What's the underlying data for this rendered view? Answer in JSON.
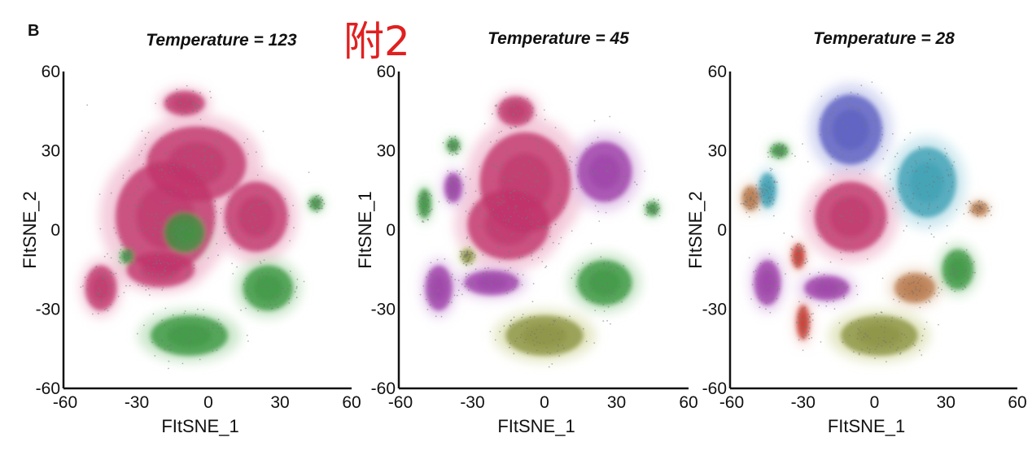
{
  "figure": {
    "panel_letter": "B",
    "annotation": {
      "text": "附2",
      "color": "#e02020"
    }
  },
  "chart_data": [
    {
      "type": "scatter",
      "title": "Temperature = 123",
      "xlabel": "FItSNE_1",
      "ylabel": "FItSNE_2",
      "xlim": [
        -60,
        60
      ],
      "ylim": [
        -60,
        60
      ],
      "xticks": [
        -60,
        -30,
        0,
        30,
        60
      ],
      "yticks": [
        60,
        30,
        0,
        -30,
        -60
      ],
      "grid": false,
      "legend": "none",
      "clusters": [
        {
          "color": "#c0336a",
          "halo": "#f2c4d6",
          "center": [
            -5,
            25
          ],
          "spread": [
            22,
            15
          ]
        },
        {
          "color": "#c0336a",
          "halo": "#f2c4d6",
          "center": [
            -18,
            5
          ],
          "spread": [
            22,
            22
          ]
        },
        {
          "color": "#c0336a",
          "halo": "#f2c4d6",
          "center": [
            -45,
            -22
          ],
          "spread": [
            7,
            9
          ]
        },
        {
          "color": "#c0336a",
          "halo": "#f2c4d6",
          "center": [
            -20,
            -15
          ],
          "spread": [
            15,
            7
          ]
        },
        {
          "color": "#c0336a",
          "halo": "#f2c4d6",
          "center": [
            20,
            5
          ],
          "spread": [
            14,
            14
          ]
        },
        {
          "color": "#c0336a",
          "halo": "#f2c4d6",
          "center": [
            -10,
            48
          ],
          "spread": [
            9,
            5
          ]
        },
        {
          "color": "#3a963f",
          "halo": "#bfe2bf",
          "center": [
            -10,
            -1
          ],
          "spread": [
            9,
            8
          ]
        },
        {
          "color": "#3a963f",
          "halo": "#bfe2bf",
          "center": [
            -8,
            -40
          ],
          "spread": [
            17,
            8
          ]
        },
        {
          "color": "#3a963f",
          "halo": "#bfe2bf",
          "center": [
            25,
            -22
          ],
          "spread": [
            11,
            9
          ]
        },
        {
          "color": "#3a963f",
          "halo": "#bfe2bf",
          "center": [
            45,
            10
          ],
          "spread": [
            3,
            3
          ]
        },
        {
          "color": "#3a963f",
          "halo": "#bfe2bf",
          "center": [
            -34,
            -10
          ],
          "spread": [
            3,
            3
          ]
        }
      ]
    },
    {
      "type": "scatter",
      "title": "Temperature = 45",
      "xlabel": "FItSNE_1",
      "ylabel": "FItSNE_1",
      "xlim": [
        -60,
        60
      ],
      "ylim": [
        -60,
        60
      ],
      "xticks": [
        -60,
        -30,
        0,
        30,
        60
      ],
      "yticks": [
        60,
        30,
        0,
        -30,
        -60
      ],
      "grid": false,
      "legend": "none",
      "clusters": [
        {
          "color": "#c0336a",
          "halo": "#f2c4d6",
          "center": [
            -8,
            18
          ],
          "spread": [
            20,
            20
          ]
        },
        {
          "color": "#c0336a",
          "halo": "#f2c4d6",
          "center": [
            -15,
            2
          ],
          "spread": [
            18,
            14
          ]
        },
        {
          "color": "#c0336a",
          "halo": "#f2c4d6",
          "center": [
            -12,
            45
          ],
          "spread": [
            8,
            6
          ]
        },
        {
          "color": "#9c3ca8",
          "halo": "#e3c6ea",
          "center": [
            25,
            22
          ],
          "spread": [
            12,
            12
          ]
        },
        {
          "color": "#9c3ca8",
          "halo": "#e3c6ea",
          "center": [
            -44,
            -22
          ],
          "spread": [
            6,
            9
          ]
        },
        {
          "color": "#9c3ca8",
          "halo": "#e3c6ea",
          "center": [
            -22,
            -20
          ],
          "spread": [
            12,
            5
          ]
        },
        {
          "color": "#9c3ca8",
          "halo": "#e3c6ea",
          "center": [
            -38,
            16
          ],
          "spread": [
            4,
            6
          ]
        },
        {
          "color": "#3a963f",
          "halo": "#bfe2bf",
          "center": [
            -50,
            10
          ],
          "spread": [
            3,
            6
          ]
        },
        {
          "color": "#3a963f",
          "halo": "#bfe2bf",
          "center": [
            -38,
            32
          ],
          "spread": [
            3,
            3
          ]
        },
        {
          "color": "#3a963f",
          "halo": "#bfe2bf",
          "center": [
            25,
            -20
          ],
          "spread": [
            12,
            9
          ]
        },
        {
          "color": "#3a963f",
          "halo": "#bfe2bf",
          "center": [
            45,
            8
          ],
          "spread": [
            3,
            3
          ]
        },
        {
          "color": "#8a9140",
          "halo": "#dfe3b8",
          "center": [
            0,
            -40
          ],
          "spread": [
            17,
            8
          ]
        },
        {
          "color": "#8a9140",
          "halo": "#dfe3b8",
          "center": [
            -32,
            -10
          ],
          "spread": [
            3,
            3
          ]
        }
      ]
    },
    {
      "type": "scatter",
      "title": "Temperature = 28",
      "xlabel": "FItSNE_1",
      "ylabel": "FItSNE_2",
      "xlim": [
        -60,
        60
      ],
      "ylim": [
        -60,
        60
      ],
      "xticks": [
        -60,
        -30,
        0,
        30,
        60
      ],
      "yticks": [
        60,
        30,
        0,
        -30,
        -60
      ],
      "grid": false,
      "legend": "none",
      "clusters": [
        {
          "color": "#5a5cc0",
          "halo": "#cdd0f0",
          "center": [
            -10,
            38
          ],
          "spread": [
            14,
            14
          ]
        },
        {
          "color": "#3b9fb3",
          "halo": "#c3e4ec",
          "center": [
            22,
            18
          ],
          "spread": [
            13,
            14
          ]
        },
        {
          "color": "#3b9fb3",
          "halo": "#c3e4ec",
          "center": [
            -45,
            15
          ],
          "spread": [
            4,
            7
          ]
        },
        {
          "color": "#c0336a",
          "halo": "#f2c4d6",
          "center": [
            -10,
            5
          ],
          "spread": [
            16,
            14
          ]
        },
        {
          "color": "#9c3ca8",
          "halo": "#e3c6ea",
          "center": [
            -45,
            -20
          ],
          "spread": [
            6,
            9
          ]
        },
        {
          "color": "#9c3ca8",
          "halo": "#e3c6ea",
          "center": [
            -20,
            -22
          ],
          "spread": [
            10,
            5
          ]
        },
        {
          "color": "#c8382e",
          "halo": "#f2c9c4",
          "center": [
            -32,
            -10
          ],
          "spread": [
            3,
            5
          ]
        },
        {
          "color": "#c8382e",
          "halo": "#f2c9c4",
          "center": [
            -30,
            -35
          ],
          "spread": [
            3,
            7
          ]
        },
        {
          "color": "#b8784a",
          "halo": "#ecd6c2",
          "center": [
            17,
            -22
          ],
          "spread": [
            9,
            6
          ]
        },
        {
          "color": "#b8784a",
          "halo": "#ecd6c2",
          "center": [
            -52,
            12
          ],
          "spread": [
            4,
            5
          ]
        },
        {
          "color": "#b8784a",
          "halo": "#ecd6c2",
          "center": [
            44,
            8
          ],
          "spread": [
            4,
            3
          ]
        },
        {
          "color": "#3a963f",
          "halo": "#bfe2bf",
          "center": [
            35,
            -15
          ],
          "spread": [
            7,
            8
          ]
        },
        {
          "color": "#3a963f",
          "halo": "#bfe2bf",
          "center": [
            -40,
            30
          ],
          "spread": [
            4,
            3
          ]
        },
        {
          "color": "#8a9140",
          "halo": "#dfe3b8",
          "center": [
            2,
            -40
          ],
          "spread": [
            17,
            8
          ]
        }
      ]
    }
  ]
}
